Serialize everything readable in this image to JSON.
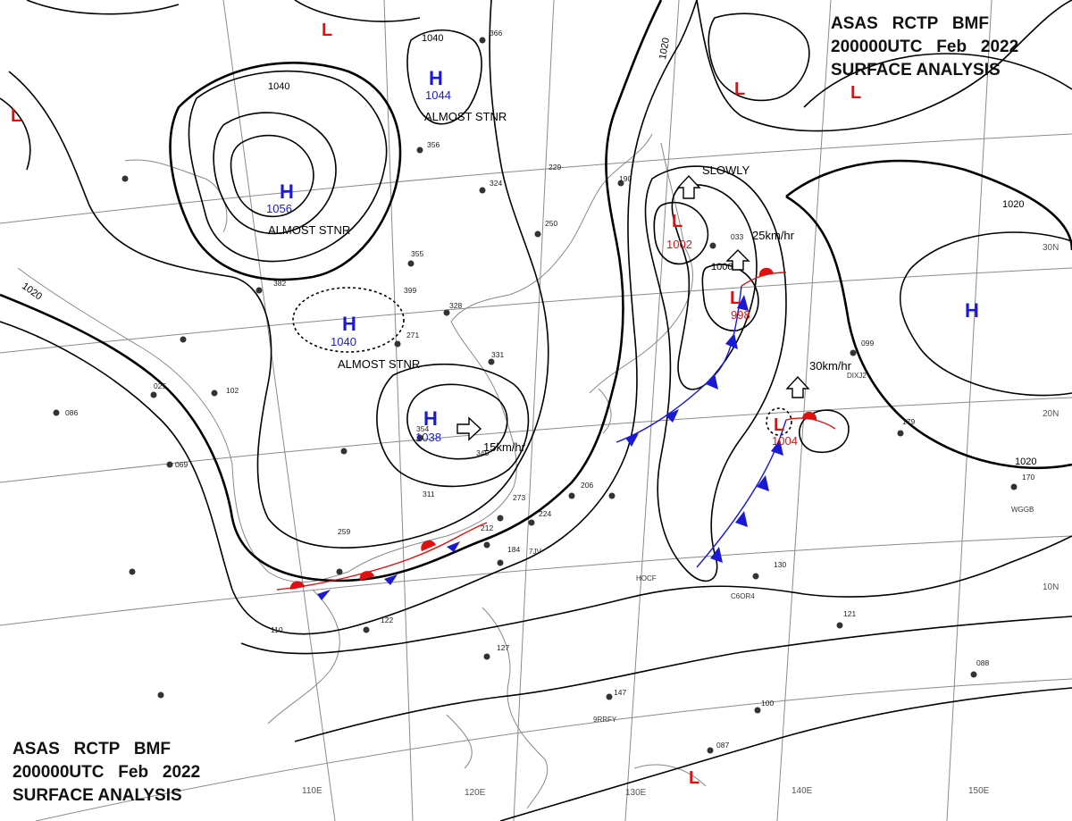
{
  "title": {
    "line1": "ASAS   RCTP   BMF",
    "line2": "200000UTC   Feb   2022",
    "line3": "SURFACE ANALYSIS"
  },
  "longitude_labels": [
    "110E",
    "120E",
    "130E",
    "140E",
    "150E"
  ],
  "latitude_labels": [
    "30N",
    "20N",
    "10N"
  ],
  "isobar_labels": [
    "1040",
    "1040",
    "1020",
    "1020",
    "1020",
    "1000",
    "1020"
  ],
  "pressure_systems": [
    {
      "type": "H",
      "value": "1044",
      "note": "ALMOST STNR"
    },
    {
      "type": "H",
      "value": "1056",
      "note": "ALMOST STNR"
    },
    {
      "type": "H",
      "value": "1040",
      "note": "ALMOST STNR"
    },
    {
      "type": "H",
      "value": "1038",
      "note": "15km/hr"
    },
    {
      "type": "L",
      "value": "1002",
      "note": "SLOWLY"
    },
    {
      "type": "L",
      "value": "998",
      "note": "25km/hr"
    },
    {
      "type": "L",
      "value": "1004",
      "note": "30km/hr"
    },
    {
      "type": "H",
      "value": "",
      "note": ""
    },
    {
      "type": "L",
      "value": "",
      "note": ""
    },
    {
      "type": "L",
      "value": "",
      "note": ""
    },
    {
      "type": "L",
      "value": "",
      "note": ""
    },
    {
      "type": "L",
      "value": "",
      "note": ""
    },
    {
      "type": "L",
      "value": "",
      "note": ""
    }
  ],
  "station_labels": [
    "7JV",
    "HOCF",
    "C6OR4",
    "WGGB",
    "9RRFY",
    "DIXJ2"
  ],
  "station_values": [
    "366",
    "356",
    "324",
    "355",
    "399",
    "328",
    "271",
    "331",
    "354",
    "345",
    "311",
    "273",
    "224",
    "212",
    "184",
    "206",
    "259",
    "110",
    "122",
    "127",
    "147",
    "100",
    "121",
    "130",
    "179",
    "170",
    "088",
    "069",
    "086",
    "025",
    "102",
    "382",
    "229",
    "190",
    "250",
    "033",
    "099",
    "087"
  ],
  "colors": {
    "high": "#1a1ad6",
    "low": "#e01010",
    "isobar": "#000000",
    "grid": "#8a8a8a",
    "coast": "#777777"
  },
  "icons": [
    "high-pressure-symbol",
    "low-pressure-symbol",
    "movement-arrow",
    "cold-front",
    "warm-front",
    "station-model"
  ]
}
